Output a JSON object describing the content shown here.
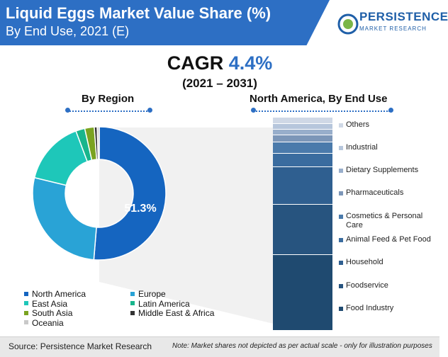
{
  "header": {
    "title": "Liquid Eggs Market Value Share (%)",
    "subtitle": "By End Use, 2021 (E)"
  },
  "logo": {
    "name": "PERSISTENCE",
    "tagline": "MARKET RESEARCH"
  },
  "cagr": {
    "label": "CAGR",
    "value": "4.4%",
    "period": "(2021 – 2031)"
  },
  "sections": {
    "left": "By Region",
    "right": "North America, By End Use"
  },
  "colors": {
    "header": "#2d6fc4",
    "accent": "#2d6fc4",
    "north_america": "#1565c0",
    "europe": "#29a3d6",
    "east_asia": "#1ec7b9",
    "latin_america": "#18b58c",
    "south_asia": "#7aa321",
    "middle_east_africa": "#333333",
    "oceania": "#c9c9c9"
  },
  "chart_data": [
    {
      "type": "pie",
      "title": "By Region",
      "center_label": "51.3%",
      "labels": [
        "North America",
        "Europe",
        "East Asia",
        "Latin America",
        "South Asia",
        "Middle East & Africa",
        "Oceania"
      ],
      "values": [
        51.3,
        27.5,
        15.5,
        2.2,
        2.3,
        0.7,
        0.5
      ],
      "colors": [
        "#1565c0",
        "#29a3d6",
        "#1ec7b9",
        "#18b58c",
        "#7aa321",
        "#333333",
        "#c9c9c9"
      ]
    },
    {
      "type": "bar",
      "title": "North America, By End Use",
      "stacked": true,
      "categories": [
        "Others",
        "Industrial",
        "Dietary Supplements",
        "Pharmaceuticals",
        "Cosmetics & Personal Care",
        "Animal Feed & Pet Food",
        "Household",
        "Foodservice",
        "Food Industry"
      ],
      "values": [
        2.7,
        2.7,
        2.7,
        3.3,
        5.3,
        6.3,
        17.5,
        23.7,
        35.8
      ],
      "colors": [
        "#cfd8e6",
        "#b6c6dc",
        "#98aecb",
        "#7c96b8",
        "#4a7aab",
        "#3a6c9f",
        "#2f5f90",
        "#27547f",
        "#1f4a70"
      ]
    }
  ],
  "footer": {
    "source": "Source: Persistence Market Research",
    "note": "Note: Market shares not depicted as per actual scale - only for illustration purposes"
  }
}
